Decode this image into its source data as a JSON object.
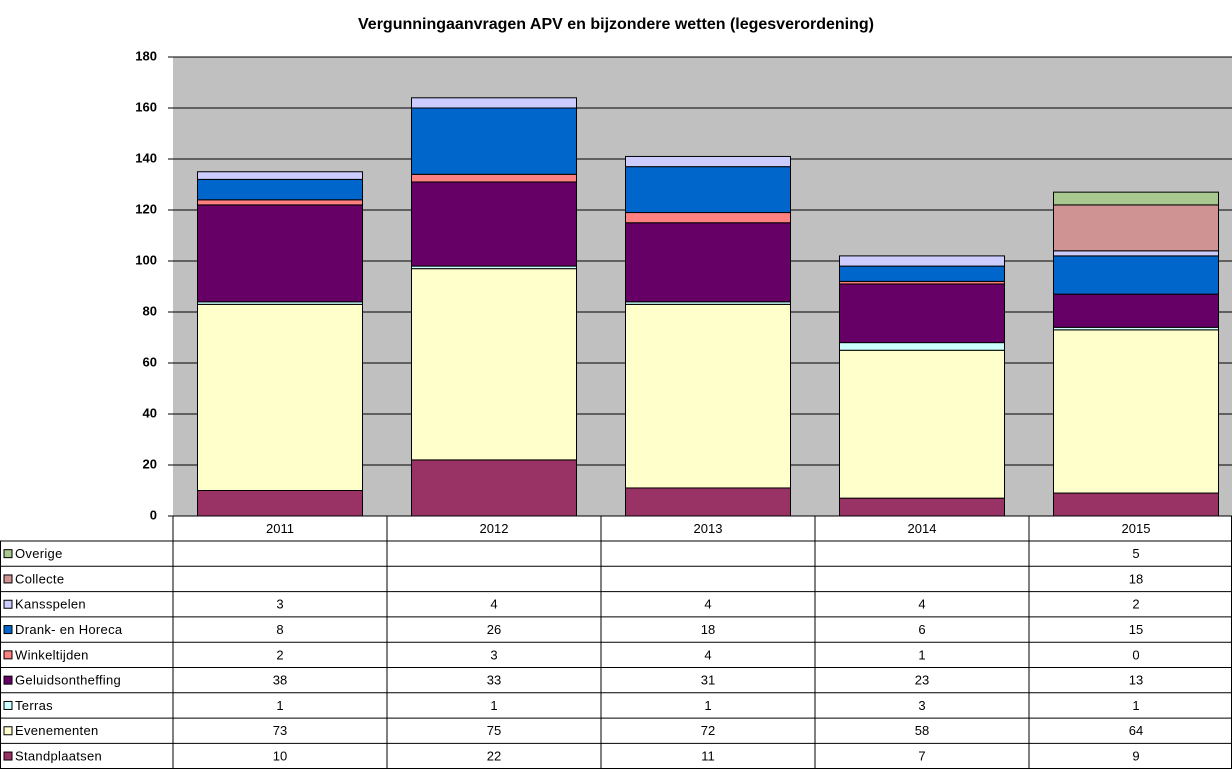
{
  "chart_data": {
    "type": "stacked_bar",
    "title": "Vergunningaanvragen APV en bijzondere wetten (legesverordening)",
    "categories": [
      "2011",
      "2012",
      "2013",
      "2014",
      "2015"
    ],
    "series": [
      {
        "name": "Standplaatsen",
        "color": "#993366",
        "values": [
          10,
          22,
          11,
          7,
          9
        ]
      },
      {
        "name": "Evenementen",
        "color": "#ffffcc",
        "values": [
          73,
          75,
          72,
          58,
          64
        ]
      },
      {
        "name": "Terras",
        "color": "#ccffff",
        "values": [
          1,
          1,
          1,
          3,
          1
        ]
      },
      {
        "name": "Geluidsontheffing",
        "color": "#660066",
        "values": [
          38,
          33,
          31,
          23,
          13
        ]
      },
      {
        "name": "Winkeltijden",
        "color": "#ff8080",
        "values": [
          2,
          3,
          4,
          1,
          0
        ]
      },
      {
        "name": "Drank- en Horeca",
        "color": "#0066cc",
        "values": [
          8,
          26,
          18,
          6,
          15
        ]
      },
      {
        "name": "Kansspelen",
        "color": "#ccccff",
        "values": [
          3,
          4,
          4,
          4,
          2
        ]
      },
      {
        "name": "Collecte",
        "color": "#d09393",
        "values": [
          null,
          null,
          null,
          null,
          18
        ]
      },
      {
        "name": "Overige",
        "color": "#a9c88f",
        "values": [
          null,
          null,
          null,
          null,
          5
        ]
      }
    ],
    "ylim": [
      0,
      180
    ],
    "yticks": [
      0,
      20,
      40,
      60,
      80,
      100,
      120,
      140,
      160,
      180
    ],
    "grid": true
  }
}
